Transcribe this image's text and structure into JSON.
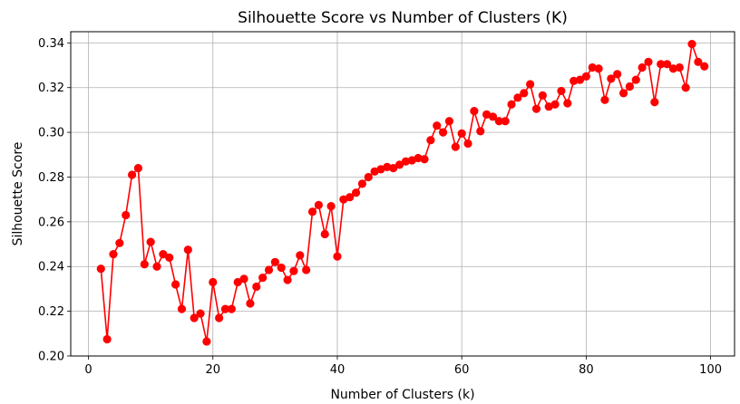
{
  "chart_data": {
    "type": "line",
    "title": "Silhouette Score vs Number of Clusters (K)",
    "xlabel": "Number of Clusters (k)",
    "ylabel": "Silhouette Score",
    "xlim": [
      -2.85,
      103.85
    ],
    "ylim": [
      0.2,
      0.345
    ],
    "x_ticks": [
      0,
      20,
      40,
      60,
      80,
      100
    ],
    "y_ticks": [
      0.2,
      0.22,
      0.24,
      0.26,
      0.28,
      0.3,
      0.32,
      0.34
    ],
    "grid": true,
    "marker": "circle",
    "color": "#ff0000",
    "series": [
      {
        "x": [
          2,
          3,
          4,
          5,
          6,
          7,
          8,
          9,
          10,
          11,
          12,
          13,
          14,
          15,
          16,
          17,
          18,
          19,
          20,
          21,
          22,
          23,
          24,
          25,
          26,
          27,
          28,
          29,
          30,
          31,
          32,
          33,
          34,
          35,
          36,
          37,
          38,
          39,
          40,
          41,
          42,
          43,
          44,
          45,
          46,
          47,
          48,
          49,
          50,
          51,
          52,
          53,
          54,
          55,
          56,
          57,
          58,
          59,
          60,
          61,
          62,
          63,
          64,
          65,
          66,
          67,
          68,
          69,
          70,
          71,
          72,
          73,
          74,
          75,
          76,
          77,
          78,
          79,
          80,
          81,
          82,
          83,
          84,
          85,
          86,
          87,
          88,
          89,
          90,
          91,
          92,
          93,
          94,
          95,
          96,
          97,
          98,
          99
        ],
        "values": [
          0.239,
          0.2075,
          0.2455,
          0.2505,
          0.263,
          0.281,
          0.284,
          0.241,
          0.251,
          0.24,
          0.2455,
          0.244,
          0.232,
          0.221,
          0.2475,
          0.217,
          0.219,
          0.2065,
          0.233,
          0.217,
          0.221,
          0.221,
          0.233,
          0.2345,
          0.2235,
          0.231,
          0.235,
          0.2385,
          0.242,
          0.2395,
          0.234,
          0.238,
          0.245,
          0.2385,
          0.2645,
          0.2675,
          0.2545,
          0.267,
          0.2445,
          0.27,
          0.271,
          0.273,
          0.277,
          0.28,
          0.2825,
          0.2835,
          0.2845,
          0.284,
          0.2855,
          0.287,
          0.2875,
          0.2885,
          0.288,
          0.2965,
          0.303,
          0.3,
          0.305,
          0.2935,
          0.2995,
          0.295,
          0.3095,
          0.3005,
          0.308,
          0.307,
          0.305,
          0.305,
          0.3125,
          0.3155,
          0.3175,
          0.3215,
          0.3105,
          0.3165,
          0.3115,
          0.3125,
          0.3185,
          0.313,
          0.323,
          0.3235,
          0.325,
          0.329,
          0.3285,
          0.3145,
          0.324,
          0.326,
          0.3175,
          0.3205,
          0.3235,
          0.329,
          0.3315,
          0.3135,
          0.3305,
          0.3305,
          0.3285,
          0.329,
          0.32,
          0.3395,
          0.3315,
          0.3295
        ]
      }
    ]
  }
}
